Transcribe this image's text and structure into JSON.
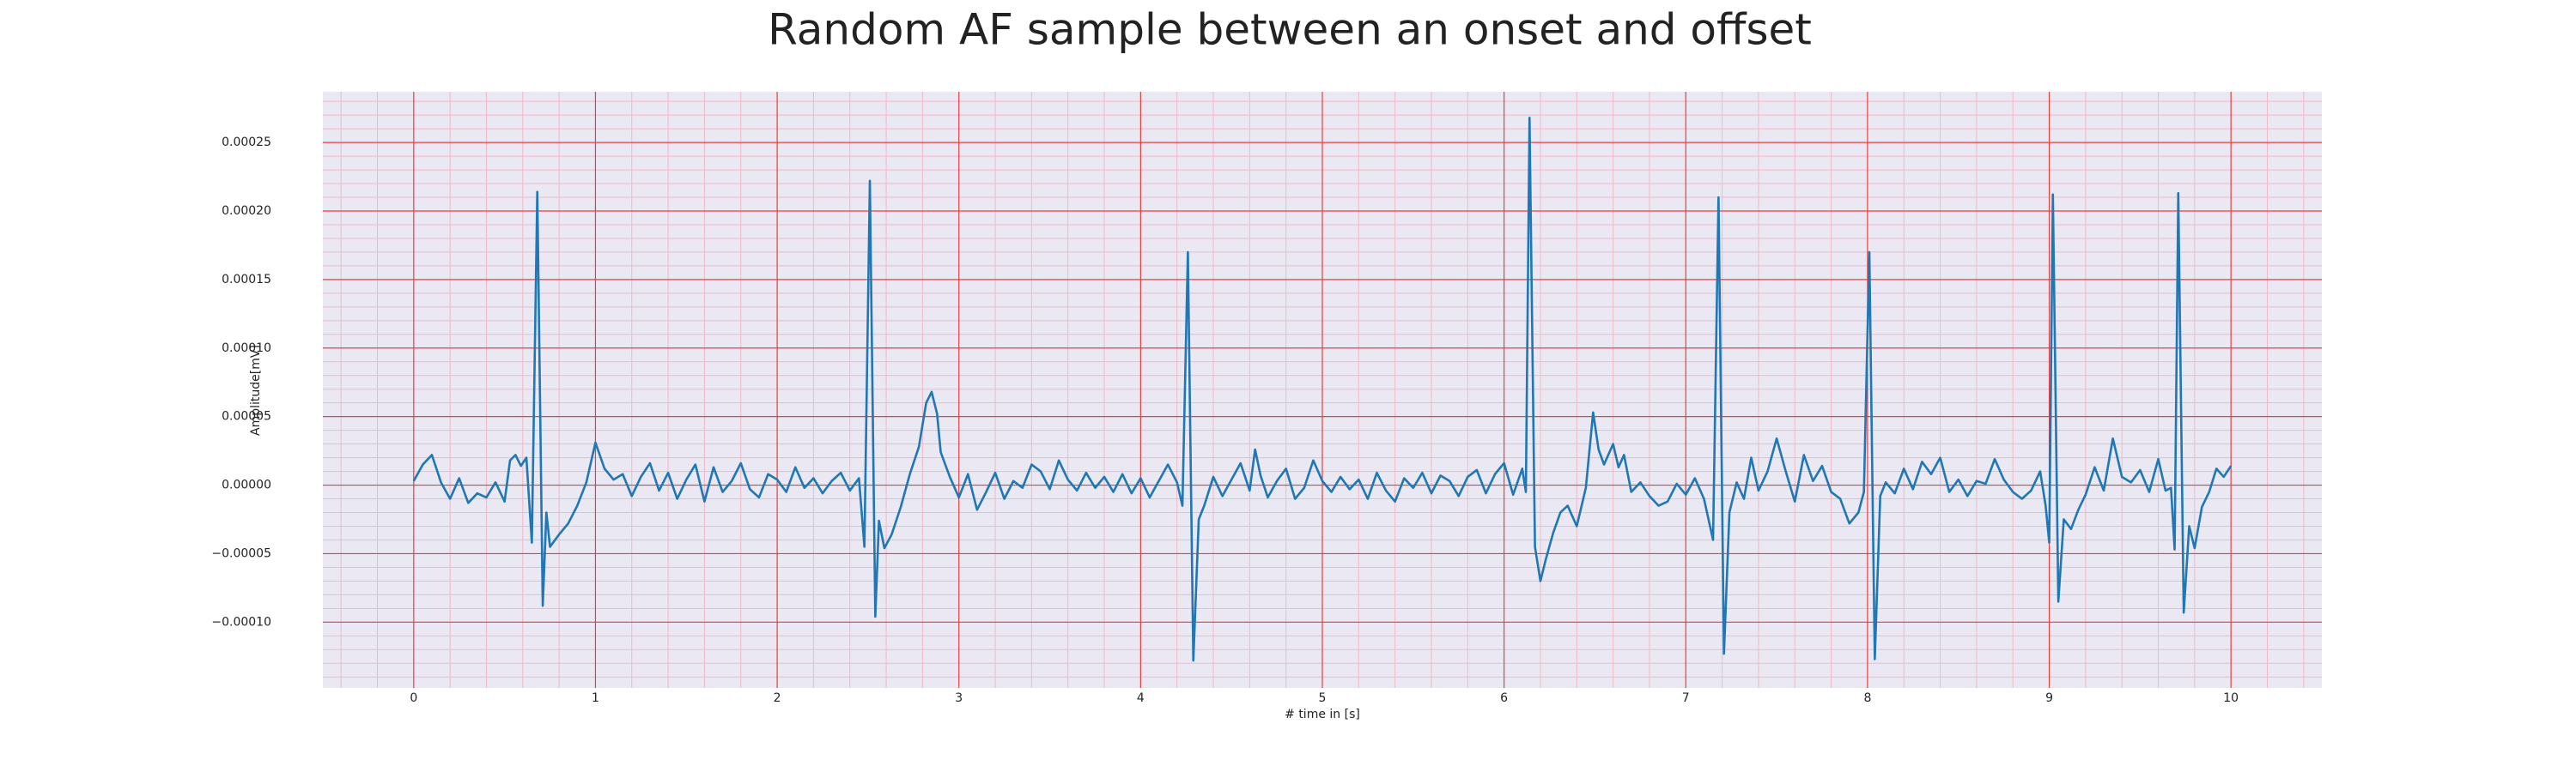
{
  "chart_data": {
    "type": "line",
    "title": "Random AF sample between an onset and offset",
    "xlabel": "# time in [s]",
    "ylabel": "Amplitude[mV]",
    "color": "#1f77b4",
    "grid": true,
    "minor_grid": true,
    "xlim": [
      -0.5,
      10.5
    ],
    "ylim": [
      -0.000148,
      0.000287
    ],
    "xticks": [
      0,
      1,
      2,
      3,
      4,
      5,
      6,
      7,
      8,
      9,
      10
    ],
    "yticks": [
      {
        "value": -0.0001,
        "label": "−0.00010"
      },
      {
        "value": -5e-05,
        "label": "−0.00005"
      },
      {
        "value": 0,
        "label": "0.00000"
      },
      {
        "value": 5e-05,
        "label": "0.00005"
      },
      {
        "value": 0.0001,
        "label": "0.00010"
      },
      {
        "value": 0.00015,
        "label": "0.00015"
      },
      {
        "value": 0.0002,
        "label": "0.00020"
      },
      {
        "value": 0.00025,
        "label": "0.00025"
      }
    ],
    "x": [
      0.0,
      0.05,
      0.1,
      0.15,
      0.2,
      0.25,
      0.3,
      0.35,
      0.4,
      0.45,
      0.5,
      0.53,
      0.56,
      0.59,
      0.62,
      0.65,
      0.68,
      0.71,
      0.73,
      0.75,
      0.8,
      0.85,
      0.9,
      0.95,
      1.0,
      1.05,
      1.1,
      1.15,
      1.2,
      1.25,
      1.3,
      1.35,
      1.4,
      1.45,
      1.5,
      1.55,
      1.6,
      1.65,
      1.7,
      1.75,
      1.8,
      1.85,
      1.9,
      1.95,
      2.0,
      2.05,
      2.1,
      2.15,
      2.2,
      2.25,
      2.3,
      2.35,
      2.4,
      2.45,
      2.48,
      2.51,
      2.54,
      2.56,
      2.59,
      2.63,
      2.68,
      2.73,
      2.78,
      2.82,
      2.85,
      2.88,
      2.9,
      2.95,
      3.0,
      3.05,
      3.1,
      3.15,
      3.2,
      3.25,
      3.3,
      3.35,
      3.4,
      3.45,
      3.5,
      3.55,
      3.6,
      3.65,
      3.7,
      3.75,
      3.8,
      3.85,
      3.9,
      3.95,
      4.0,
      4.05,
      4.1,
      4.15,
      4.2,
      4.23,
      4.26,
      4.29,
      4.32,
      4.35,
      4.4,
      4.45,
      4.5,
      4.55,
      4.6,
      4.63,
      4.66,
      4.7,
      4.75,
      4.8,
      4.85,
      4.9,
      4.95,
      5.0,
      5.05,
      5.1,
      5.15,
      5.2,
      5.25,
      5.3,
      5.35,
      5.4,
      5.45,
      5.5,
      5.55,
      5.6,
      5.65,
      5.7,
      5.75,
      5.8,
      5.85,
      5.9,
      5.95,
      6.0,
      6.05,
      6.1,
      6.12,
      6.14,
      6.17,
      6.2,
      6.23,
      6.27,
      6.31,
      6.35,
      6.4,
      6.45,
      6.49,
      6.52,
      6.55,
      6.6,
      6.63,
      6.66,
      6.7,
      6.75,
      6.8,
      6.85,
      6.9,
      6.95,
      7.0,
      7.05,
      7.1,
      7.15,
      7.18,
      7.21,
      7.24,
      7.28,
      7.32,
      7.36,
      7.4,
      7.45,
      7.5,
      7.55,
      7.6,
      7.65,
      7.7,
      7.75,
      7.8,
      7.85,
      7.9,
      7.95,
      7.98,
      8.01,
      8.04,
      8.07,
      8.1,
      8.15,
      8.2,
      8.25,
      8.3,
      8.35,
      8.4,
      8.45,
      8.5,
      8.55,
      8.6,
      8.65,
      8.7,
      8.75,
      8.8,
      8.85,
      8.9,
      8.95,
      8.98,
      9.0,
      9.02,
      9.05,
      9.08,
      9.12,
      9.16,
      9.2,
      9.25,
      9.3,
      9.35,
      9.4,
      9.45,
      9.5,
      9.55,
      9.6,
      9.64,
      9.67,
      9.69,
      9.71,
      9.74,
      9.77,
      9.8,
      9.84,
      9.88,
      9.92,
      9.96,
      10.0
    ],
    "values": [
      3e-06,
      1.5e-05,
      2.2e-05,
      2e-06,
      -1e-05,
      5e-06,
      -1.3e-05,
      -6e-06,
      -9e-06,
      2e-06,
      -1.2e-05,
      1.8e-05,
      2.2e-05,
      1.4e-05,
      2e-05,
      -4.2e-05,
      0.000214,
      -8.8e-05,
      -2e-05,
      -4.5e-05,
      -3.6e-05,
      -2.8e-05,
      -1.5e-05,
      2e-06,
      3.1e-05,
      1.2e-05,
      4e-06,
      8e-06,
      -8e-06,
      6e-06,
      1.6e-05,
      -4e-06,
      9e-06,
      -1e-05,
      4e-06,
      1.5e-05,
      -1.2e-05,
      1.3e-05,
      -5e-06,
      3e-06,
      1.6e-05,
      -3e-06,
      -9e-06,
      8e-06,
      4e-06,
      -5e-06,
      1.3e-05,
      -2e-06,
      5e-06,
      -6e-06,
      3e-06,
      9e-06,
      -4e-06,
      5e-06,
      -4.5e-05,
      0.000222,
      -9.6e-05,
      -2.6e-05,
      -4.6e-05,
      -3.6e-05,
      -1.6e-05,
      8e-06,
      2.8e-05,
      6e-05,
      6.8e-05,
      5.2e-05,
      2.4e-05,
      6e-06,
      -9e-06,
      8e-06,
      -1.8e-05,
      -5e-06,
      9e-06,
      -1e-05,
      3e-06,
      -2e-06,
      1.5e-05,
      1e-05,
      -3e-06,
      1.8e-05,
      4e-06,
      -4e-06,
      9e-06,
      -2e-06,
      6e-06,
      -5e-06,
      8e-06,
      -6e-06,
      5e-06,
      -9e-06,
      3e-06,
      1.5e-05,
      2e-06,
      -1.5e-05,
      0.00017,
      -0.000128,
      -2.5e-05,
      -1.5e-05,
      6e-06,
      -8e-06,
      4e-06,
      1.6e-05,
      -4e-06,
      2.6e-05,
      7e-06,
      -9e-06,
      3e-06,
      1.2e-05,
      -1e-05,
      -2e-06,
      1.8e-05,
      3e-06,
      -5e-06,
      6e-06,
      -3e-06,
      4e-06,
      -1e-05,
      9e-06,
      -4e-06,
      -1.2e-05,
      5e-06,
      -2e-06,
      9e-06,
      -6e-06,
      7e-06,
      3e-06,
      -8e-06,
      6e-06,
      1.1e-05,
      -6e-06,
      8e-06,
      1.6e-05,
      -7e-06,
      1.2e-05,
      -5e-06,
      0.000268,
      -4.5e-05,
      -7e-05,
      -5.4e-05,
      -3.5e-05,
      -2e-05,
      -1.5e-05,
      -3e-05,
      -2e-06,
      5.3e-05,
      2.6e-05,
      1.5e-05,
      3e-05,
      1.3e-05,
      2.2e-05,
      -5e-06,
      2e-06,
      -8e-06,
      -1.5e-05,
      -1.2e-05,
      1e-06,
      -7e-06,
      5e-06,
      -1e-05,
      -4e-05,
      0.00021,
      -0.000123,
      -2e-05,
      2e-06,
      -1e-05,
      2e-05,
      -4e-06,
      1e-05,
      3.4e-05,
      1e-05,
      -1.2e-05,
      2.2e-05,
      3e-06,
      1.4e-05,
      -5e-06,
      -1e-05,
      -2.8e-05,
      -2e-05,
      -5e-06,
      0.00017,
      -0.000127,
      -8e-06,
      2e-06,
      -6e-06,
      1.2e-05,
      -3e-06,
      1.7e-05,
      8e-06,
      2e-05,
      -5e-06,
      4e-06,
      -8e-06,
      3e-06,
      1e-06,
      1.9e-05,
      4e-06,
      -5e-06,
      -1e-05,
      -4e-06,
      1e-05,
      -1.5e-05,
      -4.2e-05,
      0.000212,
      -8.5e-05,
      -2.5e-05,
      -3.2e-05,
      -1.8e-05,
      -7e-06,
      1.3e-05,
      -4e-06,
      3.4e-05,
      6e-06,
      2e-06,
      1.1e-05,
      -5e-06,
      1.9e-05,
      -4e-06,
      -2e-06,
      -4.7e-05,
      0.000213,
      -9.3e-05,
      -3e-05,
      -4.6e-05,
      -1.6e-05,
      -5e-06,
      1.2e-05,
      6e-06,
      1.4e-05
    ]
  }
}
